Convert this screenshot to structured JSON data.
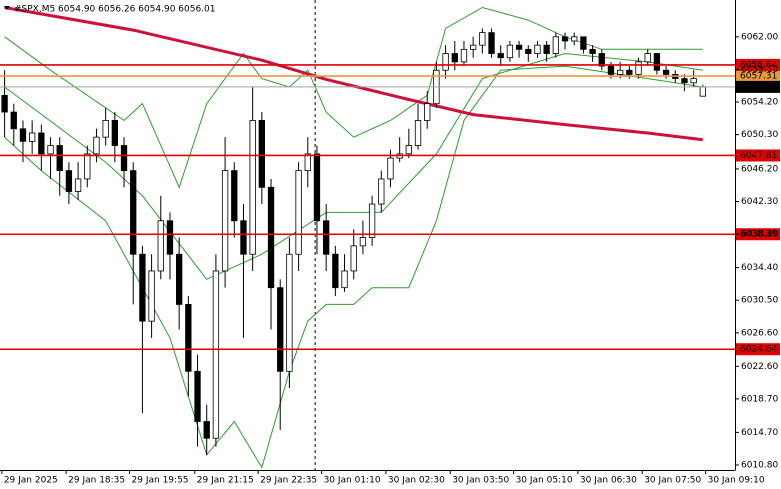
{
  "chart_data": {
    "type": "candlestick",
    "title": "#SPX,M5  6054.90 6056.26 6054.90 6056.01",
    "xlim": [
      -0.5,
      79.5
    ],
    "ylim": [
      6010.2,
      6066.4
    ],
    "xticks": [
      {
        "value": -0.3,
        "label": "29 Jan 2025"
      },
      {
        "value": 6.7,
        "label": "29 Jan 18:35"
      },
      {
        "value": 13.6,
        "label": "29 Jan 19:55"
      },
      {
        "value": 20.7,
        "label": "29 Jan 21:15"
      },
      {
        "value": 27.6,
        "label": "29 Jan 22:35"
      },
      {
        "value": 34.5,
        "label": "30 Jan 01:10"
      },
      {
        "value": 41.5,
        "label": "30 Jan 02:30"
      },
      {
        "value": 48.5,
        "label": "30 Jan 03:50"
      },
      {
        "value": 55.4,
        "label": "30 Jan 05:10"
      },
      {
        "value": 62.4,
        "label": "30 Jan 06:30"
      },
      {
        "value": 69.4,
        "label": "30 Jan 07:50"
      },
      {
        "value": 76.3,
        "label": "30 Jan 09:10"
      }
    ],
    "yticks": [
      {
        "value": 6062,
        "label": "6062.00"
      },
      {
        "value": 6058.1,
        "label": "6058.10"
      },
      {
        "value": 6054.2,
        "label": "6054.20"
      },
      {
        "value": 6050.3,
        "label": "6050.30"
      },
      {
        "value": 6046.2,
        "label": "6046.20"
      },
      {
        "value": 6042.3,
        "label": "6042.30"
      },
      {
        "value": 6038.4,
        "label": "6038.40"
      },
      {
        "value": 6034.4,
        "label": "6034.40"
      },
      {
        "value": 6030.5,
        "label": "6030.50"
      },
      {
        "value": 6026.6,
        "label": "6026.60"
      },
      {
        "value": 6022.6,
        "label": "6022.60"
      },
      {
        "value": 6018.7,
        "label": "6018.70"
      },
      {
        "value": 6014.7,
        "label": "6014.70"
      },
      {
        "value": 6010.8,
        "label": "6010.80"
      }
    ],
    "open": [
      6055,
      6053,
      6051,
      6049.5,
      6050.5,
      6048,
      6049,
      6046,
      6043.5,
      6045,
      6048,
      6050,
      6052,
      6049,
      6046,
      6036,
      6028,
      6034,
      6040,
      6036,
      6030,
      6022,
      6016,
      6014,
      6034,
      6046,
      6040,
      6036,
      6052,
      6044,
      6032,
      6022,
      6036,
      6046,
      6048,
      6040,
      6036,
      6032,
      6034,
      6037,
      6038,
      6042,
      6045,
      6047.5,
      6048,
      6049,
      6052,
      6054,
      6058,
      6060,
      6059,
      6060.5,
      6061,
      6062.5,
      6060,
      6059.5,
      6061,
      6060.5,
      6060,
      6061,
      6060,
      6062,
      6061.5,
      6062,
      6060.5,
      6060,
      6058.5,
      6057.5,
      6058,
      6057.5,
      6059,
      6060,
      6058,
      6057.5,
      6057,
      6056.5,
      6054.9
    ],
    "high": [
      6058,
      6054,
      6052,
      6052,
      6051.5,
      6050,
      6050,
      6047,
      6047,
      6049,
      6051,
      6053.5,
      6053,
      6050,
      6047,
      6037,
      6036,
      6043,
      6041,
      6038,
      6031,
      6024,
      6018,
      6036,
      6050,
      6047,
      6042,
      6056,
      6053,
      6045,
      6033,
      6038,
      6047,
      6050,
      6049,
      6042,
      6037,
      6036,
      6039,
      6040,
      6043,
      6046,
      6048.5,
      6050,
      6051,
      6054,
      6055.5,
      6059,
      6061,
      6061.5,
      6061.5,
      6062,
      6063,
      6063,
      6061,
      6061.5,
      6061.5,
      6061,
      6061.5,
      6061.5,
      6062.5,
      6062.5,
      6062.5,
      6062,
      6061,
      6060.5,
      6059,
      6059,
      6058.5,
      6059.5,
      6060.5,
      6060,
      6058.5,
      6058,
      6057.5,
      6058,
      6056.26
    ],
    "low": [
      6050,
      6049,
      6047,
      6048,
      6046,
      6045,
      6043,
      6042,
      6042.5,
      6044,
      6047,
      6049,
      6047,
      6044,
      6030,
      6017,
      6026,
      6033,
      6033,
      6027,
      6019,
      6013,
      6012,
      6013,
      6032,
      6038,
      6026,
      6034,
      6042,
      6027,
      6015,
      6020,
      6034,
      6044,
      6036,
      6034,
      6031,
      6031.5,
      6033,
      6036,
      6037,
      6041,
      6044,
      6047,
      6047.5,
      6048.5,
      6051,
      6053.5,
      6057,
      6058,
      6058.5,
      6059.5,
      6060,
      6059.5,
      6058.5,
      6059,
      6059.5,
      6059,
      6059.5,
      6059,
      6059.5,
      6060.5,
      6061,
      6060,
      6059,
      6058,
      6057,
      6057,
      6057,
      6057,
      6058.5,
      6057.5,
      6057,
      6056.5,
      6055.5,
      6056,
      6054.9
    ],
    "close": [
      6053,
      6051,
      6049.5,
      6050.5,
      6048,
      6049,
      6046,
      6043.5,
      6045,
      6048,
      6050,
      6052,
      6049,
      6046,
      6036,
      6028,
      6034,
      6040,
      6036,
      6030,
      6022,
      6016,
      6014,
      6034,
      6046,
      6040,
      6036,
      6052,
      6044,
      6032,
      6022,
      6036,
      6046,
      6048,
      6040,
      6036,
      6032,
      6034,
      6037,
      6038,
      6042,
      6045,
      6047.5,
      6048,
      6049,
      6052,
      6054,
      6058,
      6060,
      6059,
      6060.5,
      6061,
      6062.5,
      6060,
      6059.5,
      6061,
      6060.5,
      6060,
      6061,
      6060,
      6062,
      6061.5,
      6062,
      6060.5,
      6060,
      6058.5,
      6057.5,
      6058,
      6057.5,
      6059,
      6060,
      6058,
      6057.5,
      6057,
      6056.5,
      6057,
      6056.01
    ],
    "up_color": "#ffffff",
    "down_color": "#000000",
    "cursor_x": 33.8,
    "indicators": [
      {
        "color": "#2e9e2e",
        "line_width": 1,
        "x": [
          0,
          5,
          13,
          15,
          19,
          22,
          26,
          28,
          31,
          33,
          35,
          38,
          42,
          46,
          48,
          52,
          57,
          61,
          65,
          71,
          76
        ],
        "values": [
          6062,
          6058,
          6052,
          6054,
          6044,
          6054,
          6060,
          6057,
          6056,
          6058,
          6053,
          6050,
          6052,
          6055,
          6063,
          6065.5,
          6064,
          6062,
          6060.5,
          6060.5,
          6060.5
        ]
      },
      {
        "color": "#2e9e2e",
        "line_width": 1,
        "x": [
          0,
          11,
          15,
          22,
          28,
          35,
          41,
          47,
          52,
          61,
          70,
          76
        ],
        "values": [
          6056,
          6047,
          6043,
          6033,
          6036,
          6041,
          6041,
          6048,
          6057,
          6060,
          6059,
          6058
        ]
      },
      {
        "color": "#2e9e2e",
        "line_width": 1,
        "x": [
          0,
          4,
          11,
          15,
          18,
          22,
          25,
          28,
          31,
          33,
          35,
          38,
          40,
          44,
          47,
          50,
          54,
          61,
          67,
          76
        ],
        "values": [
          6050,
          6046,
          6040,
          6032,
          6026,
          6012,
          6016,
          6010.5,
          6022,
          6028,
          6030,
          6030,
          6032,
          6032,
          6040,
          6052,
          6058,
          6058.5,
          6057.5,
          6056
        ]
      },
      {
        "color": "#d0103a",
        "line_width": 3,
        "x": [
          0,
          14,
          28,
          35,
          44,
          51,
          61,
          70,
          76
        ],
        "values": [
          6065.5,
          6062.8,
          6059.2,
          6056.9,
          6054.5,
          6052.7,
          6051.5,
          6050.5,
          6049.7
        ]
      }
    ],
    "levels": [
      {
        "value": 6057.31,
        "color": "#e69a3c",
        "label_color": "#e69a3c"
      },
      {
        "value": 6058.64,
        "color": "#e00000",
        "label_color": "#e00000"
      },
      {
        "value": 6047.81,
        "color": "#e00000",
        "label_color": "#e00000"
      },
      {
        "value": 6038.39,
        "color": "#e00000",
        "label_color": "#e00000"
      },
      {
        "value": 6024.64,
        "color": "#e00000",
        "label_color": "#e00000"
      },
      {
        "value": 6056.01,
        "color": "#a0a0a0",
        "label_color": "#000000"
      }
    ]
  }
}
